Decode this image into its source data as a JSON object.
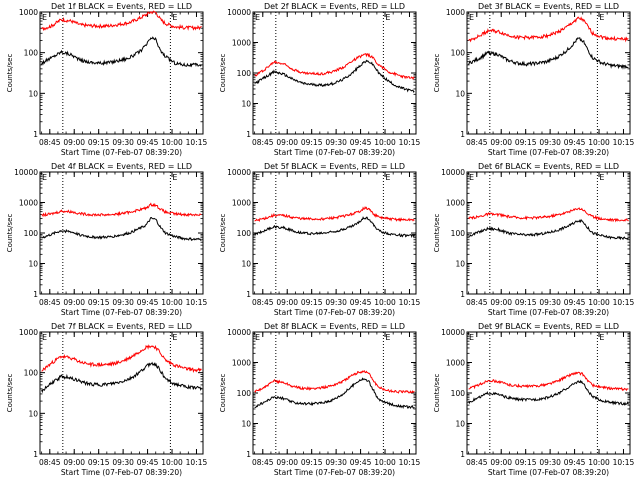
{
  "figure": {
    "ylabel": "Counts/sec",
    "xlabel": "Start Time (07-Feb-07 08:39:20)",
    "colors": {
      "events": "#000000",
      "lld": "#ff0000",
      "axes": "#000000",
      "background": "#ffffff"
    }
  },
  "chart_data": [
    {
      "type": "line",
      "title": "Det 1f BLACK = Events, RED = LLD",
      "xlabel": "Start Time (07-Feb-07 08:39:20)",
      "ylabel": "Counts/sec",
      "ylim": [
        1,
        1000
      ],
      "yscale": "log",
      "yticks": [
        "1",
        "10",
        "100",
        "1000"
      ],
      "xticks": [
        "08:45",
        "09:00",
        "09:15",
        "09:30",
        "09:45",
        "10:00",
        "10:15"
      ],
      "xlim": [
        "08:39",
        "10:19"
      ],
      "markers": [
        "08:53",
        "09:59"
      ],
      "marker_label": "E",
      "x": [
        "08:40",
        "08:46",
        "08:52",
        "08:58",
        "09:04",
        "09:10",
        "09:16",
        "09:22",
        "09:28",
        "09:34",
        "09:40",
        "09:44",
        "09:47",
        "09:50",
        "09:53",
        "09:56",
        "10:02",
        "10:08",
        "10:14",
        "10:18"
      ],
      "series": [
        {
          "name": "Events",
          "values": [
            55,
            75,
            105,
            90,
            65,
            58,
            55,
            58,
            65,
            75,
            105,
            150,
            230,
            210,
            110,
            80,
            55,
            50,
            50,
            50
          ]
        },
        {
          "name": "LLD",
          "values": [
            380,
            450,
            650,
            600,
            480,
            460,
            450,
            460,
            500,
            550,
            700,
            850,
            1000,
            980,
            650,
            520,
            430,
            410,
            410,
            410
          ]
        }
      ]
    },
    {
      "type": "line",
      "title": "Det 2f BLACK = Events, RED = LLD",
      "xlabel": "Start Time (07-Feb-07 08:39:20)",
      "ylabel": "Counts/sec",
      "ylim": [
        1,
        10000
      ],
      "yscale": "log",
      "yticks": [
        "1",
        "10",
        "100",
        "1000",
        "10000"
      ],
      "xticks": [
        "08:45",
        "09:00",
        "09:15",
        "09:30",
        "09:45",
        "10:00",
        "10:15"
      ],
      "xlim": [
        "08:39",
        "10:19"
      ],
      "markers": [
        "08:53",
        "09:59"
      ],
      "marker_label": "E",
      "x": [
        "08:40",
        "08:46",
        "08:52",
        "08:58",
        "09:04",
        "09:10",
        "09:16",
        "09:22",
        "09:28",
        "09:34",
        "09:40",
        "09:44",
        "09:47",
        "09:50",
        "09:53",
        "09:56",
        "10:02",
        "10:08",
        "10:14",
        "10:18"
      ],
      "series": [
        {
          "name": "Events",
          "values": [
            45,
            70,
            110,
            90,
            60,
            45,
            42,
            40,
            45,
            60,
            100,
            160,
            230,
            240,
            180,
            100,
            55,
            35,
            28,
            25
          ]
        },
        {
          "name": "LLD",
          "values": [
            80,
            130,
            230,
            200,
            130,
            100,
            95,
            95,
            110,
            150,
            250,
            330,
            400,
            390,
            300,
            190,
            110,
            85,
            70,
            70
          ]
        }
      ]
    },
    {
      "type": "line",
      "title": "Det 3f BLACK = Events, RED = LLD",
      "xlabel": "Start Time (07-Feb-07 08:39:20)",
      "ylabel": "Counts/sec",
      "ylim": [
        1,
        1000
      ],
      "yscale": "log",
      "yticks": [
        "1",
        "10",
        "100",
        "1000"
      ],
      "xticks": [
        "08:45",
        "09:00",
        "09:15",
        "09:30",
        "09:45",
        "10:00",
        "10:15"
      ],
      "xlim": [
        "08:39",
        "10:19"
      ],
      "markers": [
        "08:53",
        "09:59"
      ],
      "marker_label": "E",
      "x": [
        "08:40",
        "08:46",
        "08:52",
        "08:58",
        "09:04",
        "09:10",
        "09:16",
        "09:22",
        "09:28",
        "09:34",
        "09:40",
        "09:44",
        "09:47",
        "09:50",
        "09:53",
        "09:56",
        "10:02",
        "10:08",
        "10:14",
        "10:18"
      ],
      "series": [
        {
          "name": "Events",
          "values": [
            55,
            70,
            100,
            90,
            65,
            55,
            52,
            55,
            60,
            75,
            110,
            160,
            220,
            200,
            120,
            75,
            55,
            48,
            46,
            46
          ]
        },
        {
          "name": "LLD",
          "values": [
            200,
            250,
            350,
            330,
            270,
            240,
            235,
            240,
            260,
            310,
            420,
            560,
            700,
            650,
            450,
            300,
            240,
            220,
            215,
            215
          ]
        }
      ]
    },
    {
      "type": "line",
      "title": "Det 4f BLACK = Events, RED = LLD",
      "xlabel": "Start Time (07-Feb-07 08:39:20)",
      "ylabel": "Counts/sec",
      "ylim": [
        1,
        10000
      ],
      "yscale": "log",
      "yticks": [
        "1",
        "10",
        "100",
        "1000",
        "10000"
      ],
      "xticks": [
        "08:45",
        "09:00",
        "09:15",
        "09:30",
        "09:45",
        "10:00",
        "10:15"
      ],
      "xlim": [
        "08:39",
        "10:19"
      ],
      "markers": [
        "08:53",
        "09:59"
      ],
      "marker_label": "E",
      "x": [
        "08:40",
        "08:46",
        "08:52",
        "08:58",
        "09:04",
        "09:10",
        "09:16",
        "09:22",
        "09:28",
        "09:34",
        "09:40",
        "09:44",
        "09:47",
        "09:50",
        "09:53",
        "09:56",
        "10:02",
        "10:08",
        "10:14",
        "10:18"
      ],
      "series": [
        {
          "name": "Events",
          "values": [
            70,
            90,
            120,
            110,
            85,
            75,
            72,
            75,
            85,
            100,
            140,
            180,
            300,
            280,
            150,
            100,
            75,
            65,
            62,
            62
          ]
        },
        {
          "name": "LLD",
          "values": [
            380,
            420,
            520,
            500,
            430,
            400,
            395,
            400,
            430,
            480,
            580,
            650,
            850,
            820,
            600,
            480,
            420,
            400,
            400,
            400
          ]
        }
      ]
    },
    {
      "type": "line",
      "title": "Det 5f BLACK = Events, RED = LLD",
      "xlabel": "Start Time (07-Feb-07 08:39:20)",
      "ylabel": "Counts/sec",
      "ylim": [
        1,
        10000
      ],
      "yscale": "log",
      "yticks": [
        "1",
        "10",
        "100",
        "1000",
        "10000"
      ],
      "xticks": [
        "08:45",
        "09:00",
        "09:15",
        "09:30",
        "09:45",
        "10:00",
        "10:15"
      ],
      "xlim": [
        "08:39",
        "10:19"
      ],
      "markers": [
        "08:53",
        "09:59"
      ],
      "marker_label": "E",
      "x": [
        "08:40",
        "08:46",
        "08:52",
        "08:58",
        "09:04",
        "09:10",
        "09:16",
        "09:22",
        "09:28",
        "09:34",
        "09:40",
        "09:44",
        "09:47",
        "09:50",
        "09:53",
        "09:56",
        "10:02",
        "10:08",
        "10:14",
        "10:18"
      ],
      "series": [
        {
          "name": "Events",
          "values": [
            90,
            120,
            160,
            150,
            115,
            100,
            95,
            100,
            110,
            130,
            170,
            220,
            320,
            300,
            180,
            120,
            95,
            85,
            82,
            82
          ]
        },
        {
          "name": "LLD",
          "values": [
            250,
            300,
            380,
            370,
            320,
            290,
            285,
            290,
            310,
            350,
            420,
            500,
            650,
            620,
            420,
            330,
            290,
            275,
            270,
            270
          ]
        }
      ]
    },
    {
      "type": "line",
      "title": "Det 6f BLACK = Events, RED = LLD",
      "xlabel": "Start Time (07-Feb-07 08:39:20)",
      "ylabel": "Counts/sec",
      "ylim": [
        1,
        10000
      ],
      "yscale": "log",
      "yticks": [
        "1",
        "10",
        "100",
        "1000",
        "10000"
      ],
      "xticks": [
        "08:45",
        "09:00",
        "09:15",
        "09:30",
        "09:45",
        "10:00",
        "10:15"
      ],
      "xlim": [
        "08:39",
        "10:19"
      ],
      "markers": [
        "08:53",
        "09:59"
      ],
      "marker_label": "E",
      "x": [
        "08:40",
        "08:46",
        "08:52",
        "08:58",
        "09:04",
        "09:10",
        "09:16",
        "09:22",
        "09:28",
        "09:34",
        "09:40",
        "09:44",
        "09:47",
        "09:50",
        "09:53",
        "09:56",
        "10:02",
        "10:08",
        "10:14",
        "10:18"
      ],
      "series": [
        {
          "name": "Events",
          "values": [
            80,
            105,
            140,
            130,
            100,
            90,
            85,
            90,
            100,
            120,
            160,
            200,
            260,
            240,
            150,
            100,
            80,
            70,
            68,
            68
          ]
        },
        {
          "name": "LLD",
          "values": [
            300,
            340,
            420,
            400,
            350,
            320,
            315,
            320,
            340,
            390,
            470,
            550,
            650,
            600,
            430,
            340,
            290,
            270,
            265,
            265
          ]
        }
      ]
    },
    {
      "type": "line",
      "title": "Det 7f BLACK = Events, RED = LLD",
      "xlabel": "Start Time (07-Feb-07 08:39:20)",
      "ylabel": "Counts/sec",
      "ylim": [
        1,
        1000
      ],
      "yscale": "log",
      "yticks": [
        "1",
        "10",
        "100",
        "1000"
      ],
      "xticks": [
        "08:45",
        "09:00",
        "09:15",
        "09:30",
        "09:45",
        "10:00",
        "10:15"
      ],
      "xlim": [
        "08:39",
        "10:19"
      ],
      "markers": [
        "08:53",
        "09:59"
      ],
      "marker_label": "E",
      "x": [
        "08:40",
        "08:46",
        "08:52",
        "08:58",
        "09:04",
        "09:10",
        "09:16",
        "09:22",
        "09:28",
        "09:34",
        "09:40",
        "09:44",
        "09:47",
        "09:50",
        "09:53",
        "09:56",
        "10:02",
        "10:08",
        "10:14",
        "10:18"
      ],
      "series": [
        {
          "name": "Events",
          "values": [
            35,
            55,
            80,
            75,
            60,
            52,
            50,
            52,
            58,
            70,
            100,
            140,
            170,
            160,
            110,
            70,
            52,
            45,
            42,
            42
          ]
        },
        {
          "name": "LLD",
          "values": [
            110,
            170,
            250,
            230,
            180,
            160,
            155,
            160,
            180,
            230,
            330,
            420,
            450,
            420,
            300,
            200,
            150,
            125,
            115,
            115
          ]
        }
      ]
    },
    {
      "type": "line",
      "title": "Det 8f BLACK = Events, RED = LLD",
      "xlabel": "Start Time (07-Feb-07 08:39:20)",
      "ylabel": "Counts/sec",
      "ylim": [
        1,
        10000
      ],
      "yscale": "log",
      "yticks": [
        "1",
        "10",
        "100",
        "1000",
        "10000"
      ],
      "xticks": [
        "08:45",
        "09:00",
        "09:15",
        "09:30",
        "09:45",
        "10:00",
        "10:15"
      ],
      "xlim": [
        "08:39",
        "10:19"
      ],
      "markers": [
        "08:53",
        "09:59"
      ],
      "marker_label": "E",
      "x": [
        "08:40",
        "08:46",
        "08:52",
        "08:58",
        "09:04",
        "09:10",
        "09:16",
        "09:22",
        "09:28",
        "09:34",
        "09:40",
        "09:44",
        "09:47",
        "09:50",
        "09:53",
        "09:56",
        "10:02",
        "10:08",
        "10:14",
        "10:18"
      ],
      "series": [
        {
          "name": "Events",
          "values": [
            35,
            50,
            75,
            65,
            48,
            45,
            45,
            48,
            60,
            90,
            170,
            260,
            290,
            240,
            120,
            60,
            45,
            38,
            35,
            35
          ]
        },
        {
          "name": "LLD",
          "values": [
            110,
            150,
            250,
            220,
            160,
            140,
            140,
            150,
            180,
            240,
            380,
            480,
            520,
            450,
            250,
            150,
            120,
            110,
            110,
            110
          ]
        }
      ]
    },
    {
      "type": "line",
      "title": "Det 9f BLACK = Events, RED = LLD",
      "xlabel": "Start Time (07-Feb-07 08:39:20)",
      "ylabel": "Counts/sec",
      "ylim": [
        1,
        10000
      ],
      "yscale": "log",
      "yticks": [
        "1",
        "10",
        "100",
        "1000",
        "10000"
      ],
      "xticks": [
        "08:45",
        "09:00",
        "09:15",
        "09:30",
        "09:45",
        "10:00",
        "10:15"
      ],
      "xlim": [
        "08:39",
        "10:19"
      ],
      "markers": [
        "08:53",
        "09:59"
      ],
      "marker_label": "E",
      "x": [
        "08:40",
        "08:46",
        "08:52",
        "08:58",
        "09:04",
        "09:10",
        "09:16",
        "09:22",
        "09:28",
        "09:34",
        "09:40",
        "09:44",
        "09:47",
        "09:50",
        "09:53",
        "09:56",
        "10:02",
        "10:08",
        "10:14",
        "10:18"
      ],
      "series": [
        {
          "name": "Events",
          "values": [
            50,
            70,
            100,
            90,
            70,
            62,
            60,
            62,
            70,
            90,
            140,
            190,
            240,
            220,
            120,
            75,
            55,
            48,
            45,
            45
          ]
        },
        {
          "name": "LLD",
          "values": [
            140,
            180,
            260,
            240,
            190,
            170,
            165,
            170,
            190,
            240,
            340,
            430,
            450,
            420,
            260,
            180,
            150,
            140,
            135,
            135
          ]
        }
      ]
    }
  ]
}
